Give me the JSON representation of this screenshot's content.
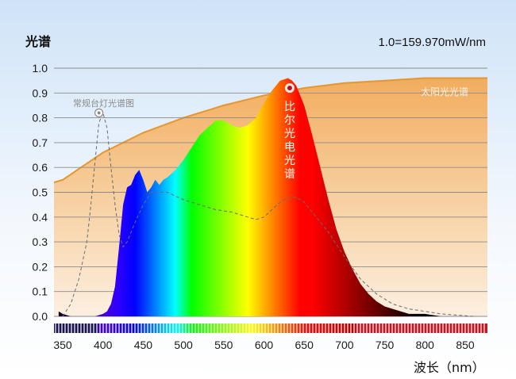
{
  "chart_data": {
    "type": "area",
    "title": "光谱",
    "scale_note": "1.0=159.970mW/nm",
    "xlabel": "波长（nm）",
    "ylabel": "",
    "xlim": [
      345,
      860
    ],
    "ylim": [
      0,
      1.0
    ],
    "x_ticks": [
      350,
      400,
      450,
      500,
      550,
      600,
      650,
      700,
      750,
      800,
      850
    ],
    "y_ticks": [
      "0.0",
      "0.1",
      "0.2",
      "0.3",
      "0.4",
      "0.5",
      "0.6",
      "0.7",
      "0.8",
      "0.9",
      "1.0"
    ],
    "grid": true,
    "series": [
      {
        "name": "比尔光电光谱",
        "style": "filled-spectrum",
        "x": [
          345,
          350,
          360,
          370,
          380,
          390,
          400,
          405,
          410,
          415,
          420,
          425,
          430,
          435,
          440,
          445,
          450,
          455,
          460,
          465,
          470,
          475,
          480,
          490,
          500,
          510,
          520,
          530,
          540,
          550,
          560,
          570,
          580,
          590,
          600,
          610,
          620,
          630,
          635,
          640,
          650,
          660,
          670,
          680,
          690,
          700,
          710,
          720,
          730,
          740,
          750,
          760,
          770,
          780,
          800,
          820,
          840,
          860
        ],
        "y": [
          0.02,
          0.01,
          0.0,
          0.0,
          0.0,
          0.0,
          0.01,
          0.02,
          0.05,
          0.12,
          0.28,
          0.45,
          0.52,
          0.53,
          0.57,
          0.59,
          0.55,
          0.5,
          0.52,
          0.55,
          0.53,
          0.55,
          0.56,
          0.59,
          0.63,
          0.68,
          0.73,
          0.76,
          0.79,
          0.79,
          0.77,
          0.76,
          0.77,
          0.8,
          0.86,
          0.91,
          0.95,
          0.96,
          0.95,
          0.93,
          0.85,
          0.73,
          0.6,
          0.47,
          0.35,
          0.26,
          0.19,
          0.13,
          0.09,
          0.06,
          0.04,
          0.03,
          0.02,
          0.01,
          0.01,
          0.0,
          0.0,
          0.0
        ]
      },
      {
        "name": "常规台灯光谱图",
        "style": "dashed",
        "x": [
          350,
          360,
          370,
          380,
          385,
          390,
          395,
          400,
          405,
          410,
          415,
          420,
          425,
          430,
          440,
          450,
          460,
          480,
          500,
          520,
          540,
          560,
          580,
          590,
          600,
          610,
          620,
          630,
          640,
          650,
          660,
          680,
          700,
          720,
          740,
          760,
          780,
          800,
          820,
          860
        ],
        "y": [
          0.0,
          0.05,
          0.15,
          0.3,
          0.45,
          0.62,
          0.78,
          0.82,
          0.76,
          0.6,
          0.45,
          0.33,
          0.28,
          0.3,
          0.38,
          0.45,
          0.5,
          0.5,
          0.47,
          0.45,
          0.43,
          0.42,
          0.4,
          0.39,
          0.4,
          0.43,
          0.46,
          0.48,
          0.48,
          0.46,
          0.42,
          0.34,
          0.24,
          0.15,
          0.09,
          0.05,
          0.03,
          0.02,
          0.01,
          0.0
        ]
      },
      {
        "name": "太阳光光谱",
        "style": "orange-area",
        "x": [
          350,
          400,
          450,
          500,
          550,
          600,
          650,
          700,
          750,
          800,
          850
        ],
        "y": [
          0.55,
          0.66,
          0.74,
          0.8,
          0.85,
          0.89,
          0.92,
          0.94,
          0.95,
          0.96,
          0.96
        ]
      }
    ],
    "annotations": {
      "lamp_label": "常规台灯光谱图",
      "sun_label": "太阳光光谱",
      "bier_label": "比尔光电光谱"
    },
    "colors": {
      "sun_line": "#e6962e",
      "sun_fill_top": "#f3b467",
      "sun_fill_bottom": "#fbeedd",
      "grid": "#8a8a8a",
      "dashed": "#6b6b6b"
    }
  }
}
